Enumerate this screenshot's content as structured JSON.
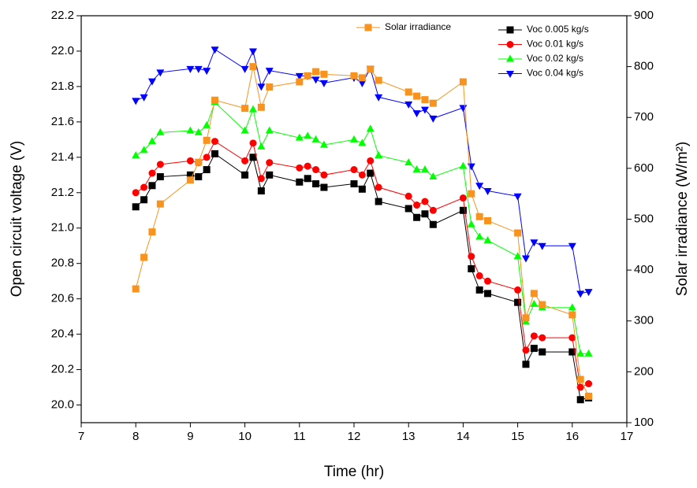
{
  "chart_data": {
    "type": "line",
    "x": [
      8.0,
      8.15,
      8.3,
      8.45,
      9.0,
      9.15,
      9.3,
      9.45,
      10.0,
      10.15,
      10.3,
      10.45,
      11.0,
      11.15,
      11.3,
      11.45,
      12.0,
      12.15,
      12.3,
      12.45,
      13.0,
      13.15,
      13.3,
      13.45,
      14.0,
      14.15,
      14.3,
      14.45,
      15.0,
      15.15,
      15.3,
      15.45,
      16.0,
      16.15,
      16.3
    ],
    "series": [
      {
        "name": "Voc 0.005 kg/s",
        "color": "#000000",
        "marker": "square",
        "values": [
          21.12,
          21.16,
          21.24,
          21.29,
          21.3,
          21.29,
          21.33,
          21.42,
          21.3,
          21.4,
          21.21,
          21.3,
          21.26,
          21.28,
          21.25,
          21.23,
          21.25,
          21.22,
          21.31,
          21.15,
          21.11,
          21.06,
          21.08,
          21.02,
          21.1,
          20.77,
          20.65,
          20.63,
          20.58,
          20.23,
          20.32,
          20.3,
          20.3,
          20.03,
          20.04
        ]
      },
      {
        "name": "Voc 0.01 kg/s",
        "color": "#ff0000",
        "marker": "circle",
        "values": [
          21.2,
          21.23,
          21.31,
          21.36,
          21.38,
          21.37,
          21.4,
          21.49,
          21.38,
          21.48,
          21.28,
          21.37,
          21.34,
          21.35,
          21.33,
          21.3,
          21.33,
          21.3,
          21.38,
          21.23,
          21.18,
          21.13,
          21.15,
          21.1,
          21.17,
          20.84,
          20.73,
          20.7,
          20.65,
          20.31,
          20.39,
          20.38,
          20.38,
          20.1,
          20.12
        ]
      },
      {
        "name": "Voc 0.02 kg/s",
        "color": "#00ff00",
        "marker": "triangle-up",
        "values": [
          21.41,
          21.44,
          21.49,
          21.54,
          21.55,
          21.54,
          21.58,
          21.71,
          21.55,
          21.67,
          21.46,
          21.55,
          21.51,
          21.52,
          21.5,
          21.47,
          21.5,
          21.48,
          21.56,
          21.41,
          21.37,
          21.33,
          21.33,
          21.29,
          21.35,
          21.02,
          20.95,
          20.93,
          20.84,
          20.47,
          20.57,
          20.55,
          20.55,
          20.29,
          20.29
        ]
      },
      {
        "name": "Voc 0.04 kg/s",
        "color": "#0000ff",
        "marker": "triangle-down",
        "values": [
          21.72,
          21.74,
          21.83,
          21.88,
          21.9,
          21.9,
          21.89,
          22.01,
          21.9,
          22.0,
          21.8,
          21.89,
          21.86,
          21.86,
          21.84,
          21.82,
          21.85,
          21.82,
          21.9,
          21.74,
          21.7,
          21.65,
          21.67,
          21.62,
          21.68,
          21.35,
          21.24,
          21.21,
          21.18,
          20.83,
          20.92,
          20.9,
          20.9,
          20.63,
          20.64
        ]
      },
      {
        "name": "Solar irradiance",
        "color": "#f7931e",
        "marker": "square",
        "axis": "y2",
        "values": [
          363,
          425,
          475,
          530,
          577,
          612,
          655,
          734,
          718,
          800,
          720,
          760,
          770,
          782,
          790,
          785,
          782,
          778,
          795,
          773,
          750,
          742,
          735,
          728,
          770,
          550,
          505,
          497,
          473,
          306,
          354,
          332,
          312,
          185,
          152
        ]
      }
    ],
    "xlabel": "Time (hr)",
    "ylabel": "Open circuit voltage (V)",
    "y2label": "Solar irradiance (W/m²)",
    "xlim": [
      7,
      17
    ],
    "xticks": [
      7,
      8,
      9,
      10,
      11,
      12,
      13,
      14,
      15,
      16,
      17
    ],
    "ylim": [
      19.9,
      22.2
    ],
    "yticks": [
      {
        "value": 20,
        "label": "20.0"
      },
      20.2,
      20.4,
      20.6,
      20.8,
      {
        "value": 21,
        "label": "21.0"
      },
      21.2,
      21.4,
      21.6,
      21.8,
      {
        "value": 22,
        "label": "22.0"
      },
      22.2
    ],
    "y2lim": [
      100,
      900
    ],
    "y2ticks": [
      100,
      200,
      300,
      400,
      500,
      600,
      700,
      800,
      900
    ]
  }
}
